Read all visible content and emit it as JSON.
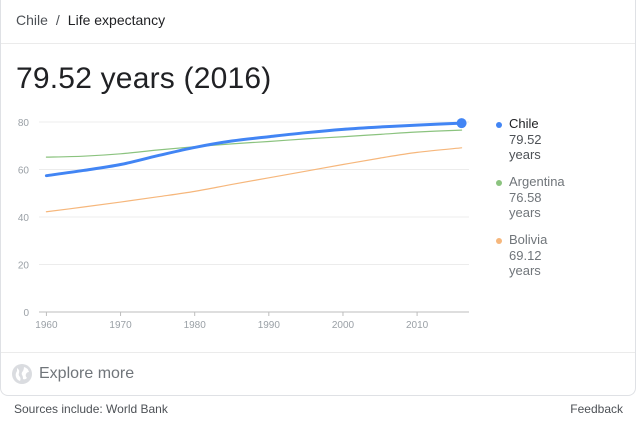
{
  "breadcrumb": {
    "root": "Chile",
    "separator": "/",
    "current": "Life expectancy"
  },
  "headline": "79.52 years (2016)",
  "legend": [
    {
      "name": "Chile",
      "value": "79.52 years",
      "color": "#4285f4"
    },
    {
      "name": "Argentina",
      "value": "76.58 years",
      "color": "#8bc37f"
    },
    {
      "name": "Bolivia",
      "value": "69.12 years",
      "color": "#f6b77c"
    }
  ],
  "explore": {
    "label": "Explore more",
    "icon": "globe-icon"
  },
  "footer": {
    "sources": "Sources include: World Bank",
    "feedback": "Feedback"
  },
  "chart_data": {
    "type": "line",
    "x": [
      1960,
      1965,
      1970,
      1975,
      1980,
      1985,
      1990,
      1995,
      2000,
      2005,
      2010,
      2016
    ],
    "xticks": [
      1960,
      1970,
      1980,
      1990,
      2000,
      2010
    ],
    "yticks": [
      0,
      20,
      40,
      60,
      80
    ],
    "xlim": [
      1959,
      2017
    ],
    "ylim": [
      0,
      80
    ],
    "grid": true,
    "legend_position": "right",
    "series": [
      {
        "name": "Chile",
        "color": "#4285f4",
        "values": [
          57.4,
          59.6,
          62.1,
          65.8,
          69.3,
          72.0,
          73.8,
          75.5,
          76.9,
          77.9,
          78.7,
          79.52
        ]
      },
      {
        "name": "Argentina",
        "color": "#8bc37f",
        "values": [
          65.2,
          65.6,
          66.6,
          68.2,
          69.6,
          70.8,
          71.8,
          72.9,
          73.8,
          74.8,
          75.8,
          76.58
        ]
      },
      {
        "name": "Bolivia",
        "color": "#f6b77c",
        "values": [
          42.2,
          44.2,
          46.3,
          48.5,
          50.8,
          53.7,
          56.5,
          59.3,
          62.1,
          64.8,
          67.2,
          69.12
        ]
      }
    ]
  }
}
